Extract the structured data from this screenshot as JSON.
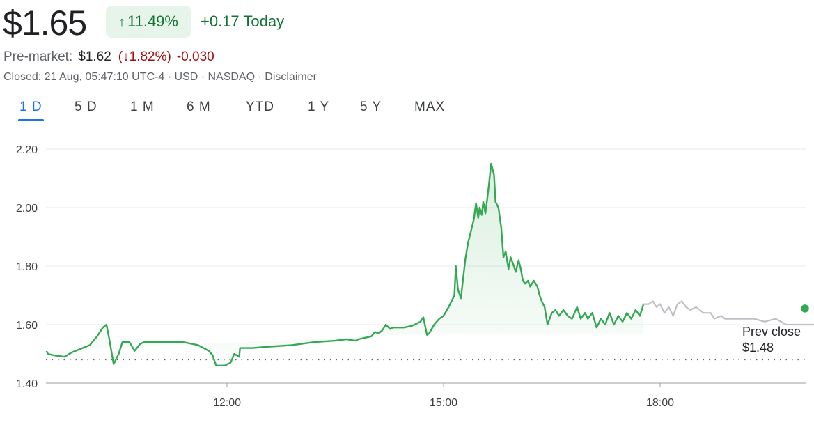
{
  "quote": {
    "price": "$1.65",
    "change_pct": "11.49%",
    "change_today": "+0.17 Today",
    "premarket_label": "Pre-market:",
    "premarket_price": "$1.62",
    "premarket_pct": "1.82%",
    "premarket_change": "-0.030",
    "closed_info": "Closed: 21 Aug, 05:47:10 UTC-4 · USD · NASDAQ · ",
    "disclaimer": "Disclaimer"
  },
  "tabs": [
    {
      "label": "1 D",
      "active": true
    },
    {
      "label": "5 D",
      "active": false
    },
    {
      "label": "1 M",
      "active": false
    },
    {
      "label": "6 M",
      "active": false
    },
    {
      "label": "YTD",
      "active": false
    },
    {
      "label": "1 Y",
      "active": false
    },
    {
      "label": "5 Y",
      "active": false
    },
    {
      "label": "MAX",
      "active": false
    }
  ],
  "colors": {
    "up": "#34a853",
    "up_text": "#137333",
    "down": "#a50e0e",
    "afterhours": "#bdc1c6",
    "accent": "#1a73e8"
  },
  "chart_data": {
    "type": "line",
    "ylim": [
      1.4,
      2.2
    ],
    "yticks": [
      "2.20",
      "2.00",
      "1.80",
      "1.60",
      "1.40"
    ],
    "xticks": [
      "12:00",
      "15:00",
      "18:00"
    ],
    "prev_close_label": "Prev close",
    "prev_close_value_label": "$1.48",
    "prev_close": 1.48,
    "x_hours_range": [
      9.5,
      20.0
    ],
    "xtick_hours": [
      12,
      15,
      18
    ],
    "grid": true,
    "series": [
      {
        "session": "regular",
        "points": [
          [
            9.5,
            1.51
          ],
          [
            9.52,
            1.5
          ],
          [
            9.6,
            1.495
          ],
          [
            9.75,
            1.49
          ],
          [
            9.85,
            1.505
          ],
          [
            10.0,
            1.52
          ],
          [
            10.1,
            1.53
          ],
          [
            10.2,
            1.56
          ],
          [
            10.28,
            1.59
          ],
          [
            10.33,
            1.6
          ],
          [
            10.37,
            1.55
          ],
          [
            10.43,
            1.465
          ],
          [
            10.5,
            1.5
          ],
          [
            10.55,
            1.54
          ],
          [
            10.65,
            1.54
          ],
          [
            10.72,
            1.51
          ],
          [
            10.8,
            1.535
          ],
          [
            10.85,
            1.54
          ],
          [
            11.1,
            1.54
          ],
          [
            11.4,
            1.54
          ],
          [
            11.6,
            1.53
          ],
          [
            11.75,
            1.51
          ],
          [
            11.8,
            1.495
          ],
          [
            11.85,
            1.46
          ],
          [
            11.97,
            1.46
          ],
          [
            12.05,
            1.47
          ],
          [
            12.1,
            1.5
          ],
          [
            12.17,
            1.49
          ],
          [
            12.18,
            1.52
          ],
          [
            12.35,
            1.52
          ],
          [
            12.6,
            1.525
          ],
          [
            12.9,
            1.53
          ],
          [
            13.2,
            1.54
          ],
          [
            13.5,
            1.545
          ],
          [
            13.65,
            1.55
          ],
          [
            13.78,
            1.545
          ],
          [
            13.82,
            1.55
          ],
          [
            14.0,
            1.56
          ],
          [
            14.05,
            1.575
          ],
          [
            14.1,
            1.57
          ],
          [
            14.15,
            1.58
          ],
          [
            14.2,
            1.6
          ],
          [
            14.26,
            1.585
          ],
          [
            14.3,
            1.59
          ],
          [
            14.45,
            1.59
          ],
          [
            14.55,
            1.595
          ],
          [
            14.6,
            1.6
          ],
          [
            14.68,
            1.61
          ],
          [
            14.72,
            1.625
          ],
          [
            14.77,
            1.565
          ],
          [
            14.8,
            1.57
          ],
          [
            14.87,
            1.6
          ],
          [
            14.94,
            1.62
          ],
          [
            15.0,
            1.63
          ],
          [
            15.07,
            1.66
          ],
          [
            15.15,
            1.7
          ],
          [
            15.17,
            1.8
          ],
          [
            15.2,
            1.72
          ],
          [
            15.24,
            1.69
          ],
          [
            15.3,
            1.82
          ],
          [
            15.34,
            1.88
          ],
          [
            15.38,
            1.92
          ],
          [
            15.42,
            1.96
          ],
          [
            15.45,
            2.015
          ],
          [
            15.48,
            1.965
          ],
          [
            15.5,
            2.0
          ],
          [
            15.53,
            1.975
          ],
          [
            15.55,
            2.02
          ],
          [
            15.58,
            1.98
          ],
          [
            15.62,
            2.06
          ],
          [
            15.66,
            2.15
          ],
          [
            15.7,
            2.11
          ],
          [
            15.72,
            2.02
          ],
          [
            15.76,
            2.0
          ],
          [
            15.8,
            1.93
          ],
          [
            15.83,
            1.83
          ],
          [
            15.86,
            1.85
          ],
          [
            15.9,
            1.79
          ],
          [
            15.93,
            1.83
          ],
          [
            15.96,
            1.81
          ],
          [
            16.0,
            1.78
          ],
          [
            16.04,
            1.82
          ],
          [
            16.07,
            1.79
          ],
          [
            16.1,
            1.75
          ],
          [
            16.13,
            1.74
          ],
          [
            16.17,
            1.75
          ],
          [
            16.2,
            1.73
          ],
          [
            16.25,
            1.75
          ],
          [
            16.3,
            1.73
          ],
          [
            16.33,
            1.7
          ],
          [
            16.36,
            1.68
          ],
          [
            16.4,
            1.66
          ],
          [
            16.44,
            1.6
          ],
          [
            16.5,
            1.64
          ],
          [
            16.55,
            1.65
          ],
          [
            16.6,
            1.63
          ],
          [
            16.66,
            1.65
          ],
          [
            16.72,
            1.63
          ],
          [
            16.78,
            1.62
          ],
          [
            16.85,
            1.66
          ],
          [
            16.9,
            1.62
          ],
          [
            16.96,
            1.64
          ],
          [
            17.0,
            1.62
          ],
          [
            17.06,
            1.64
          ],
          [
            17.12,
            1.59
          ],
          [
            17.18,
            1.62
          ],
          [
            17.24,
            1.6
          ],
          [
            17.3,
            1.64
          ],
          [
            17.36,
            1.6
          ],
          [
            17.42,
            1.63
          ],
          [
            17.48,
            1.61
          ],
          [
            17.54,
            1.64
          ],
          [
            17.6,
            1.62
          ],
          [
            17.66,
            1.65
          ],
          [
            17.72,
            1.63
          ],
          [
            17.77,
            1.67
          ]
        ]
      },
      {
        "session": "after-hours",
        "points": [
          [
            17.77,
            1.67
          ],
          [
            17.84,
            1.67
          ],
          [
            17.9,
            1.68
          ],
          [
            17.95,
            1.66
          ],
          [
            18.0,
            1.67
          ],
          [
            18.06,
            1.64
          ],
          [
            18.12,
            1.66
          ],
          [
            18.18,
            1.63
          ],
          [
            18.24,
            1.67
          ],
          [
            18.3,
            1.68
          ],
          [
            18.36,
            1.66
          ],
          [
            18.42,
            1.65
          ],
          [
            18.5,
            1.66
          ],
          [
            18.6,
            1.64
          ],
          [
            18.7,
            1.64
          ],
          [
            18.75,
            1.62
          ],
          [
            18.85,
            1.63
          ],
          [
            18.9,
            1.62
          ],
          [
            19.1,
            1.62
          ],
          [
            19.3,
            1.62
          ],
          [
            19.45,
            1.61
          ],
          [
            19.6,
            1.62
          ],
          [
            19.75,
            1.6
          ],
          [
            19.9,
            1.6
          ],
          [
            20.0,
            1.6
          ],
          [
            20.2,
            1.6
          ],
          [
            20.5,
            1.6
          ],
          [
            20.6,
            1.57
          ],
          [
            20.7,
            1.59
          ],
          [
            20.8,
            1.56
          ],
          [
            21.0,
            1.57
          ],
          [
            21.3,
            1.57
          ],
          [
            21.6,
            1.57
          ],
          [
            21.85,
            1.62
          ],
          [
            22.0,
            1.63
          ],
          [
            22.2,
            1.61
          ],
          [
            22.5,
            1.605
          ],
          [
            22.7,
            1.61
          ],
          [
            22.9,
            1.635
          ],
          [
            23.2,
            1.65
          ],
          [
            23.35,
            1.655
          ]
        ]
      }
    ],
    "last_point": [
      23.35,
      1.655
    ]
  }
}
